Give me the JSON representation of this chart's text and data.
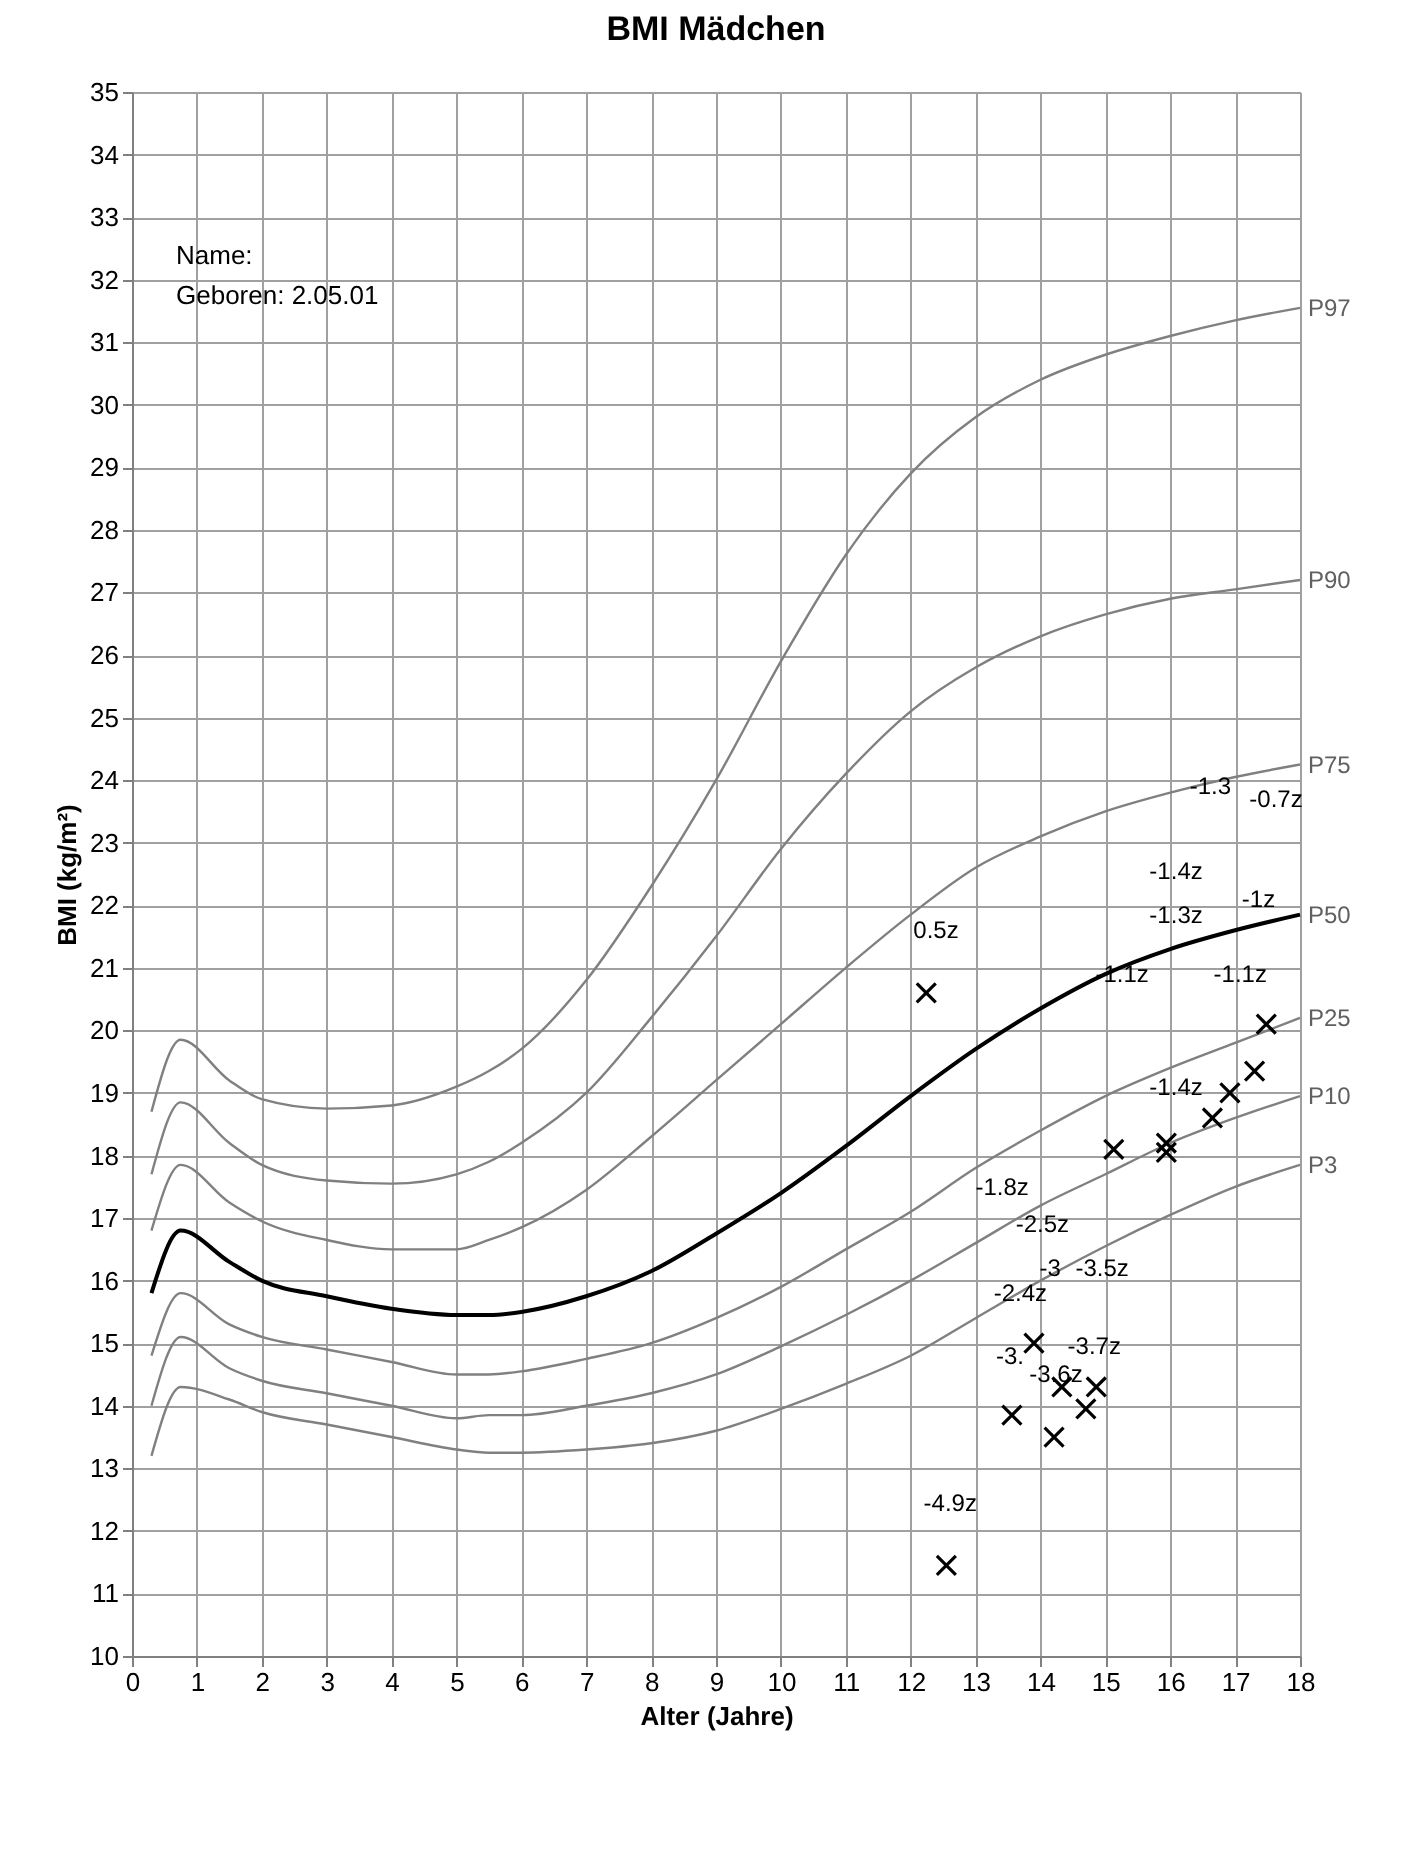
{
  "chart_data": {
    "type": "line",
    "title": "BMI Mädchen",
    "xlabel": "Alter (Jahre)",
    "ylabel": "BMI (kg/m²)",
    "xlim": [
      0,
      18
    ],
    "xticks": [
      0,
      1,
      2,
      3,
      4,
      5,
      6,
      7,
      8,
      9,
      10,
      11,
      12,
      13,
      14,
      15,
      16,
      17,
      18
    ],
    "ylim": [
      10,
      35
    ],
    "yticks": [
      10,
      11,
      12,
      13,
      14,
      15,
      16,
      17,
      18,
      19,
      20,
      21,
      22,
      23,
      24,
      25,
      26,
      27,
      28,
      29,
      30,
      31,
      32,
      33,
      34,
      35
    ],
    "grid": true,
    "marker": "none",
    "line_style": "solid",
    "x": [
      0.3,
      0.75,
      1.5,
      2,
      3,
      4,
      5,
      5.5,
      6,
      7,
      8,
      9,
      10,
      11,
      12,
      13,
      14,
      15,
      16,
      17,
      18
    ],
    "series": [
      {
        "name": "P97",
        "color": "#808080",
        "values": [
          18.7,
          19.85,
          19.2,
          18.9,
          18.75,
          18.8,
          19.1,
          19.35,
          19.7,
          20.8,
          22.3,
          24.0,
          25.9,
          27.6,
          28.9,
          29.8,
          30.4,
          30.8,
          31.1,
          31.35,
          31.55
        ]
      },
      {
        "name": "P90",
        "color": "#808080",
        "values": [
          17.7,
          18.85,
          18.2,
          17.85,
          17.6,
          17.55,
          17.7,
          17.9,
          18.2,
          19.0,
          20.2,
          21.5,
          22.9,
          24.1,
          25.1,
          25.8,
          26.3,
          26.65,
          26.9,
          27.05,
          27.2
        ]
      },
      {
        "name": "P75",
        "color": "#808080",
        "values": [
          16.8,
          17.85,
          17.25,
          16.95,
          16.65,
          16.5,
          16.5,
          16.65,
          16.85,
          17.45,
          18.3,
          19.2,
          20.1,
          21.0,
          21.85,
          22.6,
          23.1,
          23.5,
          23.8,
          24.05,
          24.25
        ]
      },
      {
        "name": "P50",
        "color": "#000000",
        "values": [
          15.8,
          16.8,
          16.3,
          16.0,
          15.75,
          15.55,
          15.45,
          15.45,
          15.5,
          15.75,
          16.15,
          16.75,
          17.4,
          18.15,
          18.95,
          19.7,
          20.35,
          20.9,
          21.3,
          21.6,
          21.85
        ]
      },
      {
        "name": "P25",
        "color": "#808080",
        "values": [
          14.8,
          15.8,
          15.3,
          15.1,
          14.9,
          14.7,
          14.5,
          14.5,
          14.55,
          14.75,
          15.0,
          15.4,
          15.9,
          16.5,
          17.1,
          17.8,
          18.4,
          18.95,
          19.4,
          19.8,
          20.2
        ]
      },
      {
        "name": "P10",
        "color": "#808080",
        "values": [
          14.0,
          15.1,
          14.6,
          14.4,
          14.2,
          14.0,
          13.8,
          13.85,
          13.85,
          14.0,
          14.2,
          14.5,
          14.95,
          15.45,
          16.0,
          16.6,
          17.2,
          17.7,
          18.2,
          18.6,
          18.95
        ]
      },
      {
        "name": "P3",
        "color": "#808080",
        "values": [
          13.2,
          14.3,
          14.1,
          13.9,
          13.7,
          13.5,
          13.3,
          13.25,
          13.25,
          13.3,
          13.4,
          13.6,
          13.95,
          14.35,
          14.8,
          15.4,
          16.0,
          16.55,
          17.05,
          17.5,
          17.85
        ]
      },
      {
        "type": "scatter",
        "marker": "cross",
        "color": "#000000",
        "x": [
          12.24,
          12.55,
          13.56,
          13.9,
          14.21,
          14.33,
          14.7,
          14.86,
          15.13,
          15.94,
          15.94,
          16.65,
          16.92,
          17.3,
          17.48
        ],
        "values": [
          20.6,
          11.45,
          13.85,
          15.0,
          13.5,
          14.3,
          13.95,
          14.3,
          18.1,
          18.2,
          18.05,
          18.6,
          19.0,
          19.35,
          20.1
        ]
      }
    ],
    "annotations": [
      "Name:",
      "Geboren: 2.05.01",
      "0.5z",
      "-1.3",
      "-0.7z",
      "-1.4z",
      "-1.3z",
      "-1z",
      "-1.1z",
      "-1.1z",
      "-1.4z",
      "-1.8z",
      "-2.5z",
      "-3",
      "-3.5z",
      "-2.4z",
      "-3.",
      "-3.7z",
      "-3.6z",
      "-4.9z"
    ]
  }
}
